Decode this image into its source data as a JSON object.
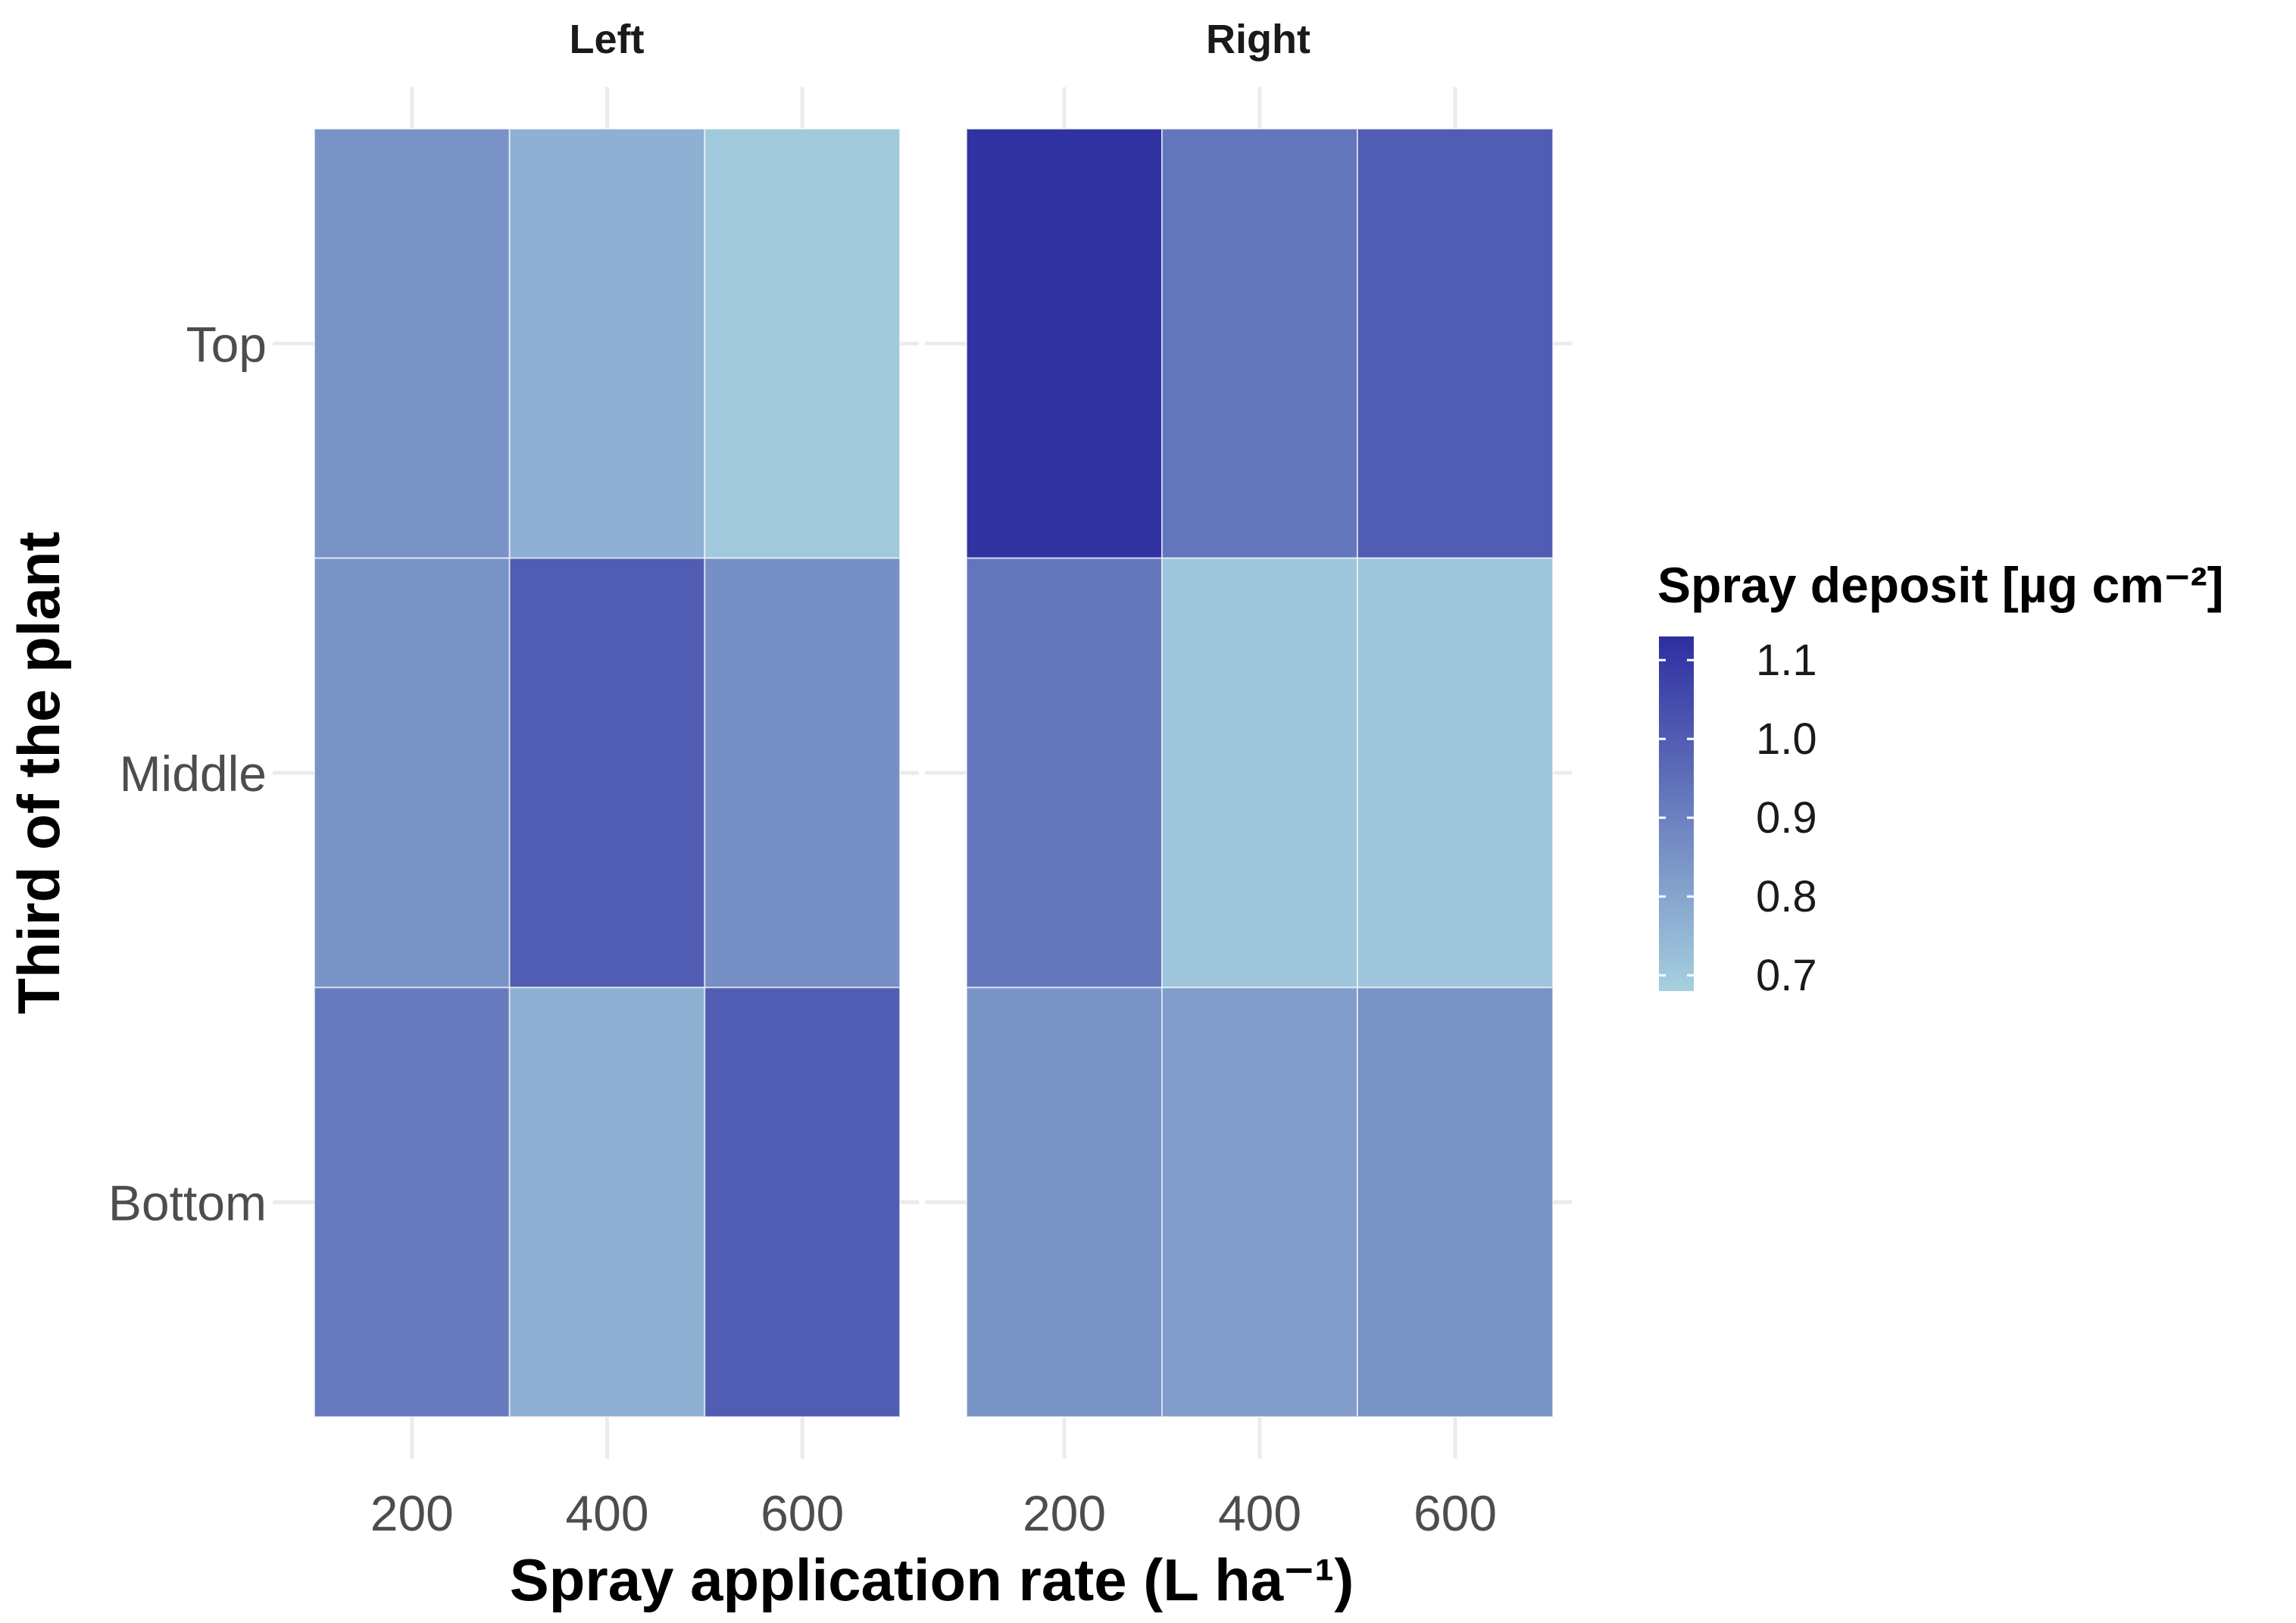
{
  "chart_data": {
    "type": "heatmap",
    "xlabel": "Spray application rate (L ha⁻¹)",
    "ylabel": "Third of the plant",
    "x_categories": [
      "200",
      "400",
      "600"
    ],
    "y_categories": [
      "Top",
      "Middle",
      "Bottom"
    ],
    "facets": [
      {
        "label": "Left",
        "values": {
          "Top": [
            0.85,
            0.77,
            0.7
          ],
          "Middle": [
            0.85,
            1.0,
            0.86
          ],
          "Bottom": [
            0.92,
            0.77,
            1.0
          ]
        }
      },
      {
        "label": "Right",
        "values": {
          "Top": [
            1.12,
            0.93,
            1.0
          ],
          "Middle": [
            0.93,
            0.71,
            0.71
          ],
          "Bottom": [
            0.85,
            0.82,
            0.85
          ]
        }
      }
    ],
    "legend": {
      "title": "Spray deposit [µg cm⁻²]",
      "ticks": [
        "1.1",
        "1.0",
        "0.9",
        "0.8",
        "0.7"
      ],
      "tick_values": [
        1.1,
        1.0,
        0.9,
        0.8,
        0.7
      ],
      "range": [
        0.68,
        1.13
      ],
      "low_color": "#A6D0DF",
      "high_color": "#2E2EA0",
      "placement": "right"
    },
    "grid": true
  }
}
